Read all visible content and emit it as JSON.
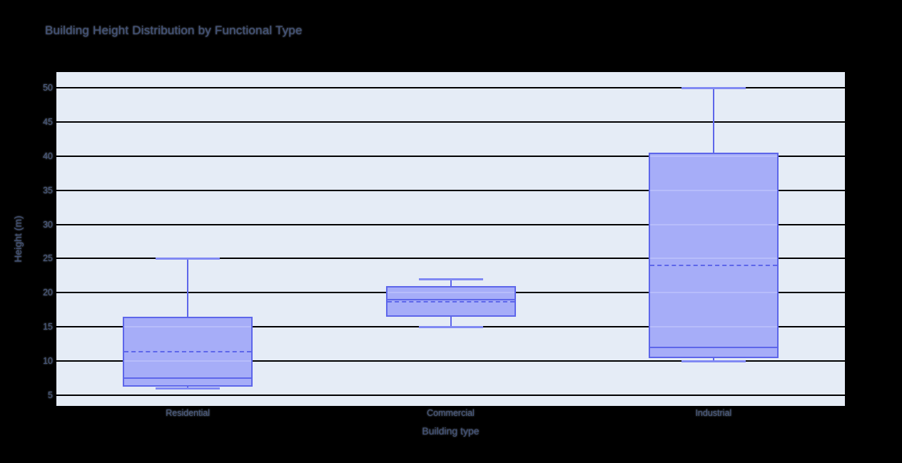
{
  "chart_data": {
    "type": "box",
    "title": "Building Height Distribution by Functional Type",
    "xlabel": "Building type",
    "ylabel": "Height (m)",
    "categories": [
      "Residential",
      "Commercial",
      "Industrial"
    ],
    "yticks": [
      5,
      10,
      15,
      20,
      25,
      30,
      35,
      40,
      45,
      50
    ],
    "ylim": [
      3.4,
      52.35
    ],
    "grid": true,
    "legend": "none",
    "series": [
      {
        "name": "Residential",
        "min": 6,
        "q1": 6.25,
        "median": 7.5,
        "mean": 11.4,
        "q3": 16.5,
        "max": 25
      },
      {
        "name": "Commercial",
        "min": 15,
        "q1": 16.5,
        "median": 19,
        "mean": 18.7,
        "q3": 21,
        "max": 22
      },
      {
        "name": "Industrial",
        "min": 10,
        "q1": 10.4,
        "median": 12,
        "mean": 24,
        "q3": 40.5,
        "max": 50
      }
    ]
  },
  "colors": {
    "page_bg": "#000000",
    "plot_bg": "#e5ecf6",
    "gridline": "#000000",
    "box_line": "#5d66ea",
    "box_fill": "#a6adf8",
    "grid_stripe_in_box": "#b7bdfb",
    "whisker_cap": "#8089f3",
    "text": "#47587c"
  }
}
